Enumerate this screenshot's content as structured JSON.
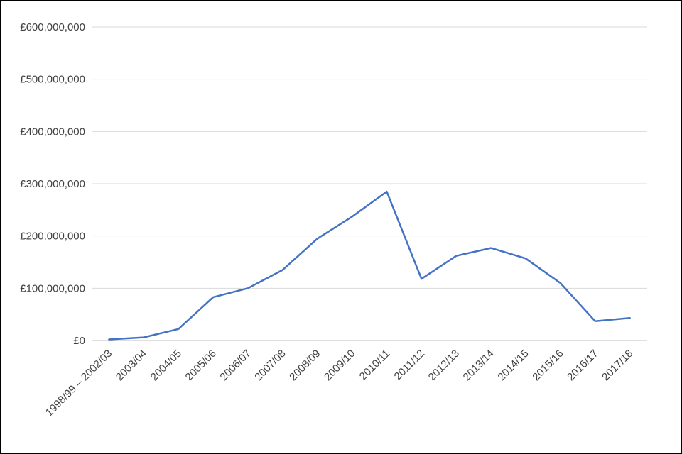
{
  "chart_data": {
    "type": "line",
    "title": "",
    "xlabel": "",
    "ylabel": "",
    "legend": "none",
    "grid": true,
    "categories": [
      "1998/99 – 2002/03",
      "2003/04",
      "2004/05",
      "2005/06",
      "2006/07",
      "2007/08",
      "2008/09",
      "2009/10",
      "2010/11",
      "2011/12",
      "2012/13",
      "2013/14",
      "2014/15",
      "2015/16",
      "2016/17",
      "2017/18"
    ],
    "values": [
      2000000,
      6000000,
      22000000,
      83000000,
      100000000,
      135000000,
      195000000,
      237000000,
      285000000,
      118000000,
      162000000,
      177000000,
      157000000,
      110000000,
      37000000,
      43000000
    ],
    "ylim": [
      0,
      600000000
    ],
    "y_ticks": [
      {
        "value": 0,
        "label": "£0"
      },
      {
        "value": 100000000,
        "label": "£100,000,000"
      },
      {
        "value": 200000000,
        "label": "£200,000,000"
      },
      {
        "value": 300000000,
        "label": "£300,000,000"
      },
      {
        "value": 400000000,
        "label": "£400,000,000"
      },
      {
        "value": 500000000,
        "label": "£500,000,000"
      },
      {
        "value": 600000000,
        "label": "£600,000,000"
      }
    ],
    "colors": {
      "line": "#4472C4",
      "gridline": "#D9D9D9",
      "axis_line": "#BFBFBF",
      "text": "#404040",
      "border": "#000000",
      "background": "#FFFFFF"
    }
  }
}
